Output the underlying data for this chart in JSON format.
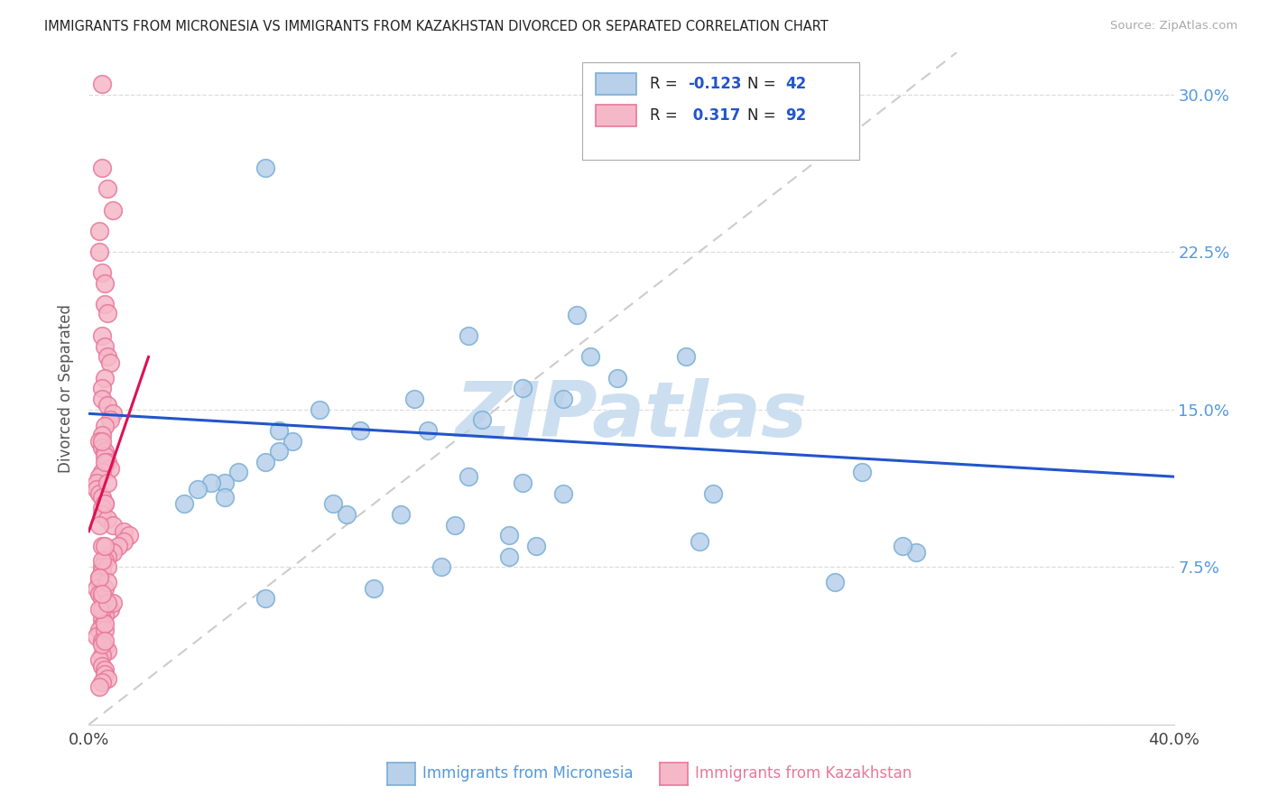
{
  "title": "IMMIGRANTS FROM MICRONESIA VS IMMIGRANTS FROM KAZAKHSTAN DIVORCED OR SEPARATED CORRELATION CHART",
  "source": "Source: ZipAtlas.com",
  "xlabel_blue": "Immigrants from Micronesia",
  "xlabel_pink": "Immigrants from Kazakhstan",
  "ylabel": "Divorced or Separated",
  "xlim": [
    0.0,
    0.4
  ],
  "ylim": [
    0.0,
    0.32
  ],
  "legend_blue_R": "-0.123",
  "legend_blue_N": "42",
  "legend_pink_R": "0.317",
  "legend_pink_N": "92",
  "blue_face": "#b8d0ea",
  "blue_edge": "#7aaed6",
  "pink_face": "#f5b8c8",
  "pink_edge": "#e8789a",
  "trend_blue": "#2255cc",
  "trend_pink": "#dd1155",
  "diag_color": "#cccccc",
  "watermark_color": "#ccdff0",
  "blue_x": [
    0.065,
    0.18,
    0.14,
    0.185,
    0.22,
    0.195,
    0.16,
    0.175,
    0.145,
    0.1,
    0.125,
    0.075,
    0.07,
    0.065,
    0.055,
    0.05,
    0.045,
    0.04,
    0.05,
    0.035,
    0.14,
    0.16,
    0.175,
    0.285,
    0.305,
    0.275,
    0.225,
    0.095,
    0.115,
    0.135,
    0.155,
    0.165,
    0.155,
    0.13,
    0.105,
    0.065,
    0.07,
    0.085,
    0.12,
    0.09,
    0.3,
    0.23
  ],
  "blue_y": [
    0.265,
    0.195,
    0.185,
    0.175,
    0.175,
    0.165,
    0.16,
    0.155,
    0.145,
    0.14,
    0.14,
    0.135,
    0.13,
    0.125,
    0.12,
    0.115,
    0.115,
    0.112,
    0.108,
    0.105,
    0.118,
    0.115,
    0.11,
    0.12,
    0.082,
    0.068,
    0.087,
    0.1,
    0.1,
    0.095,
    0.09,
    0.085,
    0.08,
    0.075,
    0.065,
    0.06,
    0.14,
    0.15,
    0.155,
    0.105,
    0.085,
    0.11
  ],
  "pink_x": [
    0.005,
    0.005,
    0.007,
    0.009,
    0.004,
    0.004,
    0.005,
    0.006,
    0.006,
    0.007,
    0.005,
    0.006,
    0.007,
    0.008,
    0.006,
    0.005,
    0.005,
    0.007,
    0.009,
    0.008,
    0.006,
    0.005,
    0.004,
    0.005,
    0.006,
    0.006,
    0.007,
    0.008,
    0.005,
    0.004,
    0.003,
    0.003,
    0.004,
    0.005,
    0.006,
    0.005,
    0.005,
    0.007,
    0.009,
    0.013,
    0.015,
    0.013,
    0.011,
    0.009,
    0.007,
    0.006,
    0.005,
    0.005,
    0.004,
    0.004,
    0.003,
    0.004,
    0.005,
    0.007,
    0.008,
    0.006,
    0.005,
    0.005,
    0.004,
    0.003,
    0.005,
    0.006,
    0.007,
    0.005,
    0.004,
    0.005,
    0.006,
    0.006,
    0.007,
    0.005,
    0.004,
    0.005,
    0.006,
    0.006,
    0.007,
    0.005,
    0.004,
    0.006,
    0.007,
    0.006,
    0.005,
    0.005,
    0.007,
    0.009,
    0.006,
    0.005,
    0.004,
    0.004,
    0.006,
    0.007,
    0.006,
    0.005
  ],
  "pink_y": [
    0.305,
    0.265,
    0.255,
    0.245,
    0.235,
    0.225,
    0.215,
    0.21,
    0.2,
    0.196,
    0.185,
    0.18,
    0.175,
    0.172,
    0.165,
    0.16,
    0.155,
    0.152,
    0.148,
    0.145,
    0.142,
    0.138,
    0.135,
    0.132,
    0.13,
    0.128,
    0.125,
    0.122,
    0.12,
    0.118,
    0.115,
    0.112,
    0.11,
    0.108,
    0.105,
    0.103,
    0.1,
    0.098,
    0.095,
    0.092,
    0.09,
    0.087,
    0.085,
    0.082,
    0.08,
    0.078,
    0.075,
    0.073,
    0.07,
    0.068,
    0.065,
    0.062,
    0.06,
    0.057,
    0.055,
    0.052,
    0.05,
    0.047,
    0.045,
    0.042,
    0.04,
    0.037,
    0.035,
    0.033,
    0.031,
    0.028,
    0.026,
    0.024,
    0.022,
    0.02,
    0.018,
    0.055,
    0.045,
    0.065,
    0.075,
    0.085,
    0.095,
    0.105,
    0.115,
    0.125,
    0.135,
    0.078,
    0.068,
    0.058,
    0.048,
    0.038,
    0.055,
    0.07,
    0.085,
    0.058,
    0.04,
    0.062
  ],
  "blue_trend_x0": 0.0,
  "blue_trend_x1": 0.4,
  "blue_trend_y0": 0.148,
  "blue_trend_y1": 0.118,
  "pink_trend_x0": 0.0,
  "pink_trend_x1": 0.022,
  "pink_trend_y0": 0.092,
  "pink_trend_y1": 0.175
}
